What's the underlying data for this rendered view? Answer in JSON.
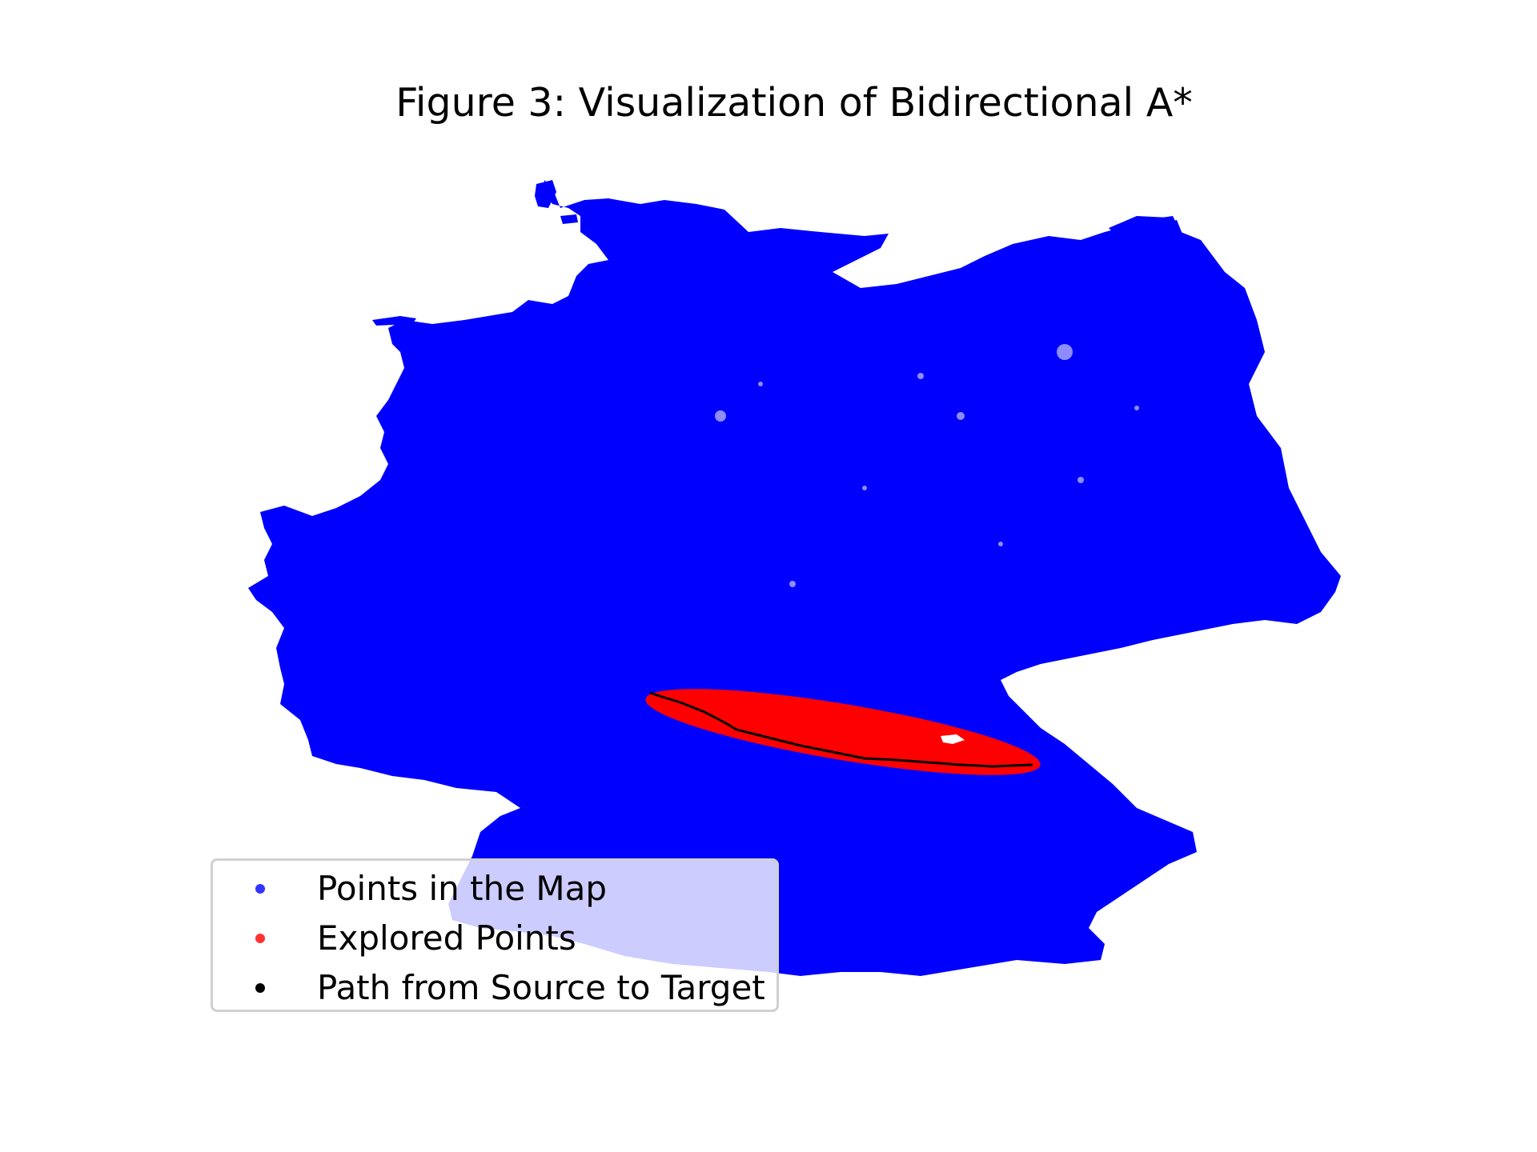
{
  "title": "Figure 3: Visualization of Bidirectional A*",
  "chart_data": {
    "type": "scatter",
    "axes_visible": false,
    "legend_placement": "lower-left",
    "series": [
      {
        "name": "Points in the Map",
        "color": "#0000ff",
        "extent": "outline of Germany"
      },
      {
        "name": "Explored Points",
        "color": "#ff0000",
        "extent": "elongated ellipse from south-west-central to south-east-central Germany"
      },
      {
        "name": "Path from Source to Target",
        "color": "#000000",
        "extent": "line through the explored region"
      }
    ]
  },
  "legend": {
    "items": [
      {
        "label": "Points in the Map",
        "color": "#3333ff"
      },
      {
        "label": "Explored Points",
        "color": "#ff3333"
      },
      {
        "label": "Path from Source to Target",
        "color": "#000000"
      }
    ]
  }
}
